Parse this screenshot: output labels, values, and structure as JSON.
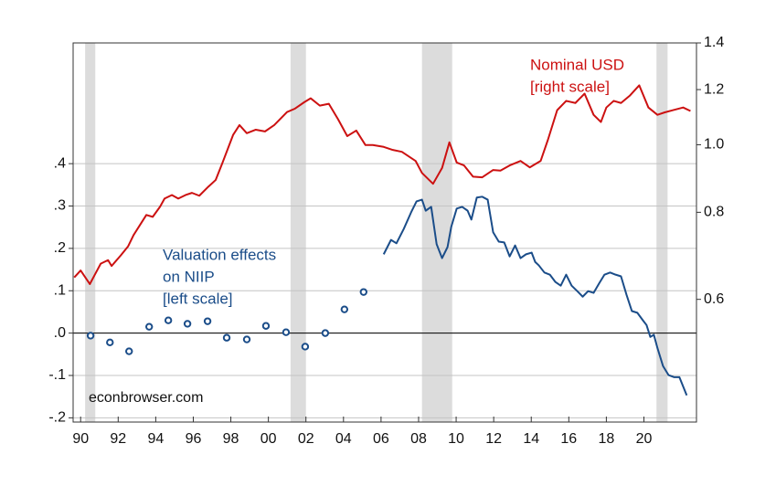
{
  "chart_data": {
    "type": "line",
    "xlim": [
      1989.6,
      2022.8
    ],
    "xticks": [
      {
        "value": 1990,
        "label": "90"
      },
      {
        "value": 1992,
        "label": "92"
      },
      {
        "value": 1994,
        "label": "94"
      },
      {
        "value": 1996,
        "label": "96"
      },
      {
        "value": 1998,
        "label": "98"
      },
      {
        "value": 2000,
        "label": "00"
      },
      {
        "value": 2002,
        "label": "02"
      },
      {
        "value": 2004,
        "label": "04"
      },
      {
        "value": 2006,
        "label": "06"
      },
      {
        "value": 2008,
        "label": "08"
      },
      {
        "value": 2010,
        "label": "10"
      },
      {
        "value": 2012,
        "label": "12"
      },
      {
        "value": 2014,
        "label": "14"
      },
      {
        "value": 2016,
        "label": "16"
      },
      {
        "value": 2018,
        "label": "18"
      },
      {
        "value": 2020,
        "label": "20"
      }
    ],
    "ylim": [
      -0.21,
      0.685
    ],
    "yticks": [
      {
        "value": 0.4,
        "label": ".4"
      },
      {
        "value": 0.3,
        "label": ".3"
      },
      {
        "value": 0.2,
        "label": ".2"
      },
      {
        "value": 0.1,
        "label": ".1"
      },
      {
        "value": 0,
        "label": ".0"
      },
      {
        "value": -0.1,
        "label": "-.1"
      },
      {
        "value": -0.2,
        "label": "-.2"
      }
    ],
    "y2lim": [
      0.4,
      1.4
    ],
    "y2_log": true,
    "y2ticks": [
      0.6,
      0.8,
      {
        "value": 1.0,
        "label": "1.0"
      },
      1.2,
      1.4
    ],
    "grid": true,
    "shaded_spans": [
      [
        1990.24,
        1990.78
      ],
      [
        2001.18,
        2002.0
      ],
      [
        2008.18,
        2009.79
      ],
      [
        2020.67,
        2021.26
      ]
    ],
    "shade_color": "#dcdcdc",
    "annotation": "econbrowser.com",
    "series": [
      {
        "label": [
          "Valuation effects",
          "on NIIP",
          "[left scale]"
        ],
        "color": "#1b4d89",
        "marker": "circle",
        "axis": "y",
        "x": [
          1990.53,
          1991.56,
          1992.58,
          1993.65,
          1994.67,
          1995.69,
          1996.76,
          1997.78,
          1998.85,
          1999.87,
          2000.94,
          2001.96,
          2003.03,
          2004.05,
          2005.07
        ],
        "values": [
          -0.006,
          -0.022,
          -0.043,
          0.015,
          0.03,
          0.022,
          0.028,
          -0.011,
          -0.015,
          0.017,
          0.002,
          -0.032,
          0.0,
          0.056,
          0.097
        ]
      },
      {
        "color": "#1b4d89",
        "axis": "y",
        "x": [
          2006.14,
          2006.53,
          2006.82,
          2007.21,
          2007.6,
          2007.89,
          2008.18,
          2008.38,
          2008.67,
          2008.96,
          2009.25,
          2009.54,
          2009.74,
          2010.03,
          2010.32,
          2010.61,
          2010.81,
          2011.1,
          2011.39,
          2011.68,
          2011.97,
          2012.27,
          2012.56,
          2012.85,
          2013.14,
          2013.43,
          2013.72,
          2014.02,
          2014.21,
          2014.4,
          2014.7,
          2014.99,
          2015.28,
          2015.57,
          2015.86,
          2016.15,
          2016.45,
          2016.74,
          2017.03,
          2017.32,
          2017.61,
          2017.9,
          2018.2,
          2018.49,
          2018.78,
          2019.07,
          2019.36,
          2019.65,
          2019.95,
          2020.14,
          2020.34,
          2020.53,
          2020.72,
          2021.02,
          2021.31,
          2021.6,
          2021.89,
          2022.28
        ],
        "values": [
          0.186,
          0.22,
          0.212,
          0.246,
          0.285,
          0.311,
          0.315,
          0.289,
          0.298,
          0.21,
          0.177,
          0.203,
          0.251,
          0.294,
          0.298,
          0.289,
          0.268,
          0.32,
          0.322,
          0.315,
          0.238,
          0.216,
          0.214,
          0.181,
          0.207,
          0.177,
          0.186,
          0.19,
          0.168,
          0.16,
          0.143,
          0.138,
          0.121,
          0.112,
          0.138,
          0.112,
          0.099,
          0.086,
          0.099,
          0.095,
          0.117,
          0.138,
          0.143,
          0.138,
          0.134,
          0.091,
          0.052,
          0.048,
          0.03,
          0.019,
          -0.009,
          -0.004,
          -0.035,
          -0.078,
          -0.099,
          -0.104,
          -0.104,
          -0.147
        ]
      },
      {
        "label": [
          "Nominal USD",
          "[right scale]"
        ],
        "color": "#cc1111",
        "axis": "y2",
        "x": [
          1989.66,
          1990.0,
          1990.49,
          1990.73,
          1991.07,
          1991.46,
          1991.65,
          1992.14,
          1992.53,
          1992.82,
          1993.16,
          1993.5,
          1993.84,
          1994.23,
          1994.47,
          1994.86,
          1995.2,
          1995.59,
          1995.93,
          1996.32,
          1996.81,
          1997.19,
          1997.54,
          1998.12,
          1998.46,
          1998.85,
          1999.33,
          1999.82,
          2000.31,
          2000.99,
          2001.42,
          2001.91,
          2002.25,
          2002.74,
          2003.22,
          2003.71,
          2004.2,
          2004.68,
          2005.17,
          2005.56,
          2006.14,
          2006.63,
          2007.11,
          2007.84,
          2008.18,
          2008.77,
          2009.25,
          2009.64,
          2010.03,
          2010.42,
          2010.9,
          2011.39,
          2011.97,
          2012.36,
          2012.85,
          2013.43,
          2013.92,
          2014.5,
          2014.89,
          2015.38,
          2015.86,
          2016.35,
          2016.84,
          2017.32,
          2017.71,
          2018.0,
          2018.39,
          2018.78,
          2019.26,
          2019.75,
          2020.24,
          2020.72,
          2021.11,
          2021.6,
          2022.09,
          2022.48
        ],
        "values": [
          0.645,
          0.66,
          0.631,
          0.649,
          0.675,
          0.683,
          0.67,
          0.694,
          0.715,
          0.742,
          0.767,
          0.793,
          0.788,
          0.815,
          0.837,
          0.847,
          0.837,
          0.847,
          0.853,
          0.845,
          0.871,
          0.89,
          0.94,
          1.033,
          1.067,
          1.039,
          1.051,
          1.045,
          1.067,
          1.114,
          1.127,
          1.151,
          1.166,
          1.138,
          1.145,
          1.088,
          1.029,
          1.048,
          0.999,
          0.999,
          0.993,
          0.983,
          0.977,
          0.948,
          0.911,
          0.879,
          0.926,
          1.008,
          0.943,
          0.934,
          0.9,
          0.898,
          0.92,
          0.918,
          0.934,
          0.948,
          0.928,
          0.948,
          1.017,
          1.121,
          1.156,
          1.148,
          1.184,
          1.104,
          1.078,
          1.131,
          1.156,
          1.148,
          1.177,
          1.217,
          1.131,
          1.104,
          1.113,
          1.122,
          1.131,
          1.118
        ]
      }
    ]
  }
}
